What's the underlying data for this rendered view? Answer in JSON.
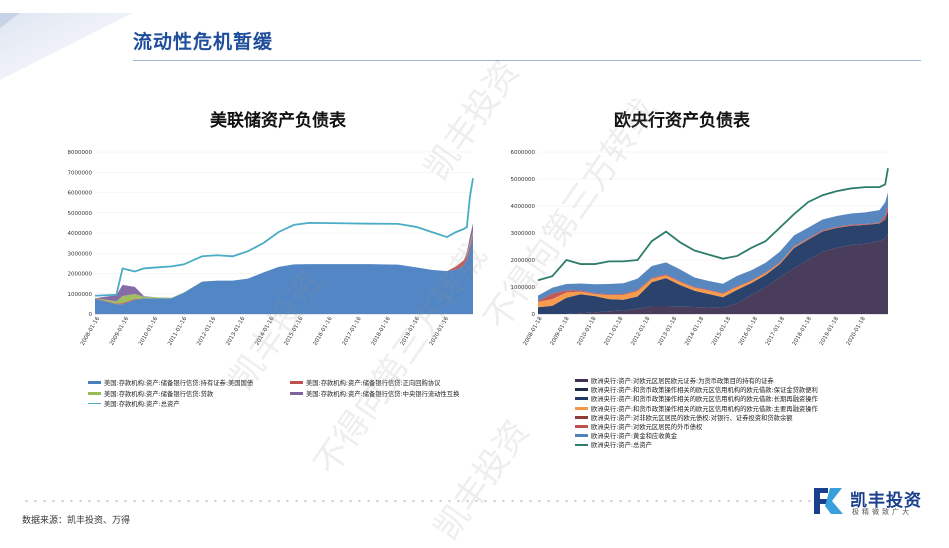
{
  "page": {
    "title": "流动性危机暂缓",
    "source": "数据来源：凯丰投资、万得",
    "logo_name": "凯丰投资",
    "logo_slogan": "极精微致广大",
    "watermarks": [
      "凯丰投资",
      "不得向第三方转载",
      "凯丰投资",
      "不得向第三方转载",
      "凯丰投资"
    ],
    "accent_color": "#1f4e9c"
  },
  "chart_data": [
    {
      "type": "area",
      "title": "美联储资产负债表",
      "ylim": [
        0,
        8000000
      ],
      "yticks": [
        "8000000",
        "7000000",
        "6000000",
        "5000000",
        "4000000",
        "3000000",
        "2000000",
        "1000000",
        "0"
      ],
      "x_ticks": [
        "2008-01-16",
        "2009-01-16",
        "2010-01-16",
        "2011-01-16",
        "2012-01-16",
        "2013-01-16",
        "2014-01-16",
        "2015-01-16",
        "2016-01-16",
        "2017-01-16",
        "2018-01-16",
        "2019-01-16",
        "2020-01-16"
      ],
      "x": [
        2008.0,
        2008.7,
        2008.9,
        2009.3,
        2009.6,
        2010.0,
        2010.5,
        2010.9,
        2011.5,
        2012.0,
        2012.5,
        2013.0,
        2013.5,
        2014.0,
        2014.5,
        2015.0,
        2016.0,
        2017.0,
        2017.9,
        2018.5,
        2019.0,
        2019.5,
        2019.8,
        2020.05,
        2020.15,
        2020.25,
        2020.35
      ],
      "series": [
        {
          "name": "美国:存款机构:资产:储备银行信贷:持有证券:美国国债",
          "color": "#4a7fc1",
          "kind": "area",
          "values": [
            750000,
            480000,
            480000,
            700000,
            770000,
            780000,
            780000,
            1050000,
            1600000,
            1650000,
            1650000,
            1750000,
            2050000,
            2330000,
            2450000,
            2460000,
            2460000,
            2460000,
            2440000,
            2300000,
            2180000,
            2120000,
            2200000,
            2400000,
            2700000,
            3200000,
            3800000
          ]
        },
        {
          "name": "美国:存款机构:资产:储备银行信贷:正向回购协议",
          "color": "#c0504d",
          "kind": "area",
          "values": [
            20000,
            30000,
            60000,
            40000,
            0,
            0,
            0,
            0,
            0,
            0,
            0,
            0,
            0,
            0,
            0,
            0,
            0,
            0,
            0,
            0,
            0,
            0,
            150000,
            250000,
            200000,
            180000,
            170000
          ]
        },
        {
          "name": "美国:存款机构:资产:储备银行信贷:贷款",
          "color": "#9bbb59",
          "kind": "area",
          "values": [
            10000,
            120000,
            350000,
            250000,
            80000,
            40000,
            20000,
            10000,
            5000,
            0,
            0,
            0,
            0,
            0,
            0,
            0,
            0,
            0,
            0,
            0,
            0,
            0,
            0,
            20000,
            50000,
            90000,
            110000
          ]
        },
        {
          "name": "美国:存款机构:资产:储备银行信贷:中央银行流动性互换",
          "color": "#8064a2",
          "kind": "area",
          "values": [
            0,
            300000,
            550000,
            350000,
            30000,
            0,
            0,
            0,
            0,
            0,
            0,
            0,
            0,
            0,
            0,
            0,
            0,
            0,
            0,
            0,
            0,
            0,
            0,
            0,
            100000,
            350000,
            400000
          ]
        },
        {
          "name": "美国:存款机构:资产:总资产",
          "color": "#4bacc6",
          "kind": "line",
          "values": [
            900000,
            950000,
            2250000,
            2100000,
            2250000,
            2300000,
            2350000,
            2450000,
            2850000,
            2900000,
            2850000,
            3100000,
            3500000,
            4050000,
            4400000,
            4500000,
            4480000,
            4460000,
            4450000,
            4300000,
            4050000,
            3800000,
            4050000,
            4200000,
            4300000,
            5800000,
            6700000
          ]
        }
      ]
    },
    {
      "type": "area",
      "title": "欧央行资产负债表",
      "ylim": [
        0,
        6000000
      ],
      "yticks": [
        "6000000",
        "5000000",
        "4000000",
        "3000000",
        "2000000",
        "1000000",
        "0"
      ],
      "x_ticks": [
        "2008-01-18",
        "2009-01-18",
        "2010-01-18",
        "2011-01-18",
        "2012-01-18",
        "2013-01-18",
        "2014-01-18",
        "2015-01-18",
        "2016-01-18",
        "2017-01-18",
        "2018-01-18",
        "2019-01-18",
        "2020-01-18"
      ],
      "x": [
        2008.0,
        2008.5,
        2009.0,
        2009.5,
        2010.0,
        2010.5,
        2011.0,
        2011.5,
        2012.0,
        2012.5,
        2013.0,
        2013.5,
        2014.0,
        2014.5,
        2015.0,
        2015.5,
        2016.0,
        2016.5,
        2017.0,
        2017.5,
        2018.0,
        2018.5,
        2019.0,
        2019.5,
        2020.0,
        2020.2,
        2020.3
      ],
      "series": [
        {
          "name": "欧洲央行:资产:对欧元区居民欧元证券:为货币政策目的持有的证券",
          "color": "#403152",
          "kind": "area",
          "values": [
            0,
            0,
            0,
            30000,
            60000,
            100000,
            130000,
            200000,
            280000,
            280000,
            270000,
            260000,
            240000,
            220000,
            400000,
            700000,
            1000000,
            1350000,
            1700000,
            2000000,
            2300000,
            2450000,
            2550000,
            2600000,
            2700000,
            2800000,
            3000000
          ]
        },
        {
          "name": "欧洲央行:资产:和货币政策操作相关的欧元区信用机构的欧元借款:长期再融资操作",
          "color": "#1f3864",
          "kind": "area",
          "values": [
            250000,
            300000,
            600000,
            700000,
            600000,
            450000,
            400000,
            450000,
            900000,
            1050000,
            800000,
            600000,
            500000,
            400000,
            500000,
            450000,
            450000,
            500000,
            750000,
            760000,
            760000,
            740000,
            720000,
            700000,
            650000,
            700000,
            800000
          ]
        },
        {
          "name": "欧洲央行:资产:和货币政策操作相关的欧元区信用机构的欧元借款:主要再融资操作",
          "color": "#f79646",
          "kind": "area",
          "values": [
            200000,
            250000,
            200000,
            100000,
            80000,
            150000,
            180000,
            200000,
            120000,
            100000,
            110000,
            110000,
            130000,
            130000,
            100000,
            70000,
            60000,
            40000,
            30000,
            20000,
            10000,
            10000,
            10000,
            5000,
            5000,
            5000,
            5000
          ]
        },
        {
          "name": "欧洲央行:资产:对欧元区居民的外币债权",
          "color": "#c0504d",
          "kind": "area",
          "values": [
            30000,
            200000,
            80000,
            40000,
            30000,
            30000,
            30000,
            40000,
            40000,
            40000,
            30000,
            30000,
            30000,
            30000,
            30000,
            30000,
            30000,
            30000,
            30000,
            30000,
            30000,
            30000,
            30000,
            30000,
            30000,
            150000,
            200000
          ]
        },
        {
          "name": "欧洲央行:资产:黄金和应收黄金",
          "color": "#4f81bd",
          "kind": "area",
          "values": [
            200000,
            220000,
            230000,
            260000,
            330000,
            380000,
            400000,
            420000,
            440000,
            440000,
            440000,
            350000,
            320000,
            340000,
            380000,
            370000,
            360000,
            390000,
            400000,
            390000,
            400000,
            400000,
            410000,
            430000,
            460000,
            480000,
            500000
          ]
        },
        {
          "name": "欧洲央行:资产:总资产",
          "color": "#2e7d6b",
          "kind": "line",
          "values": [
            1250000,
            1400000,
            2000000,
            1850000,
            1850000,
            1950000,
            1950000,
            2000000,
            2700000,
            3050000,
            2650000,
            2350000,
            2200000,
            2050000,
            2150000,
            2450000,
            2700000,
            3200000,
            3700000,
            4150000,
            4400000,
            4550000,
            4650000,
            4700000,
            4700000,
            4800000,
            5400000
          ]
        }
      ],
      "extra_legend": [
        {
          "name": "欧洲央行:资产:和货币政策操作相关的欧元区信用机构的欧元借款:保证金贷款便利",
          "color": "#1f2a44"
        },
        {
          "name": "欧洲央行:资产:对非欧元区居民的欧元债权:对银行、证券投资和贷款余额",
          "color": "#8c3a3a"
        }
      ]
    }
  ]
}
